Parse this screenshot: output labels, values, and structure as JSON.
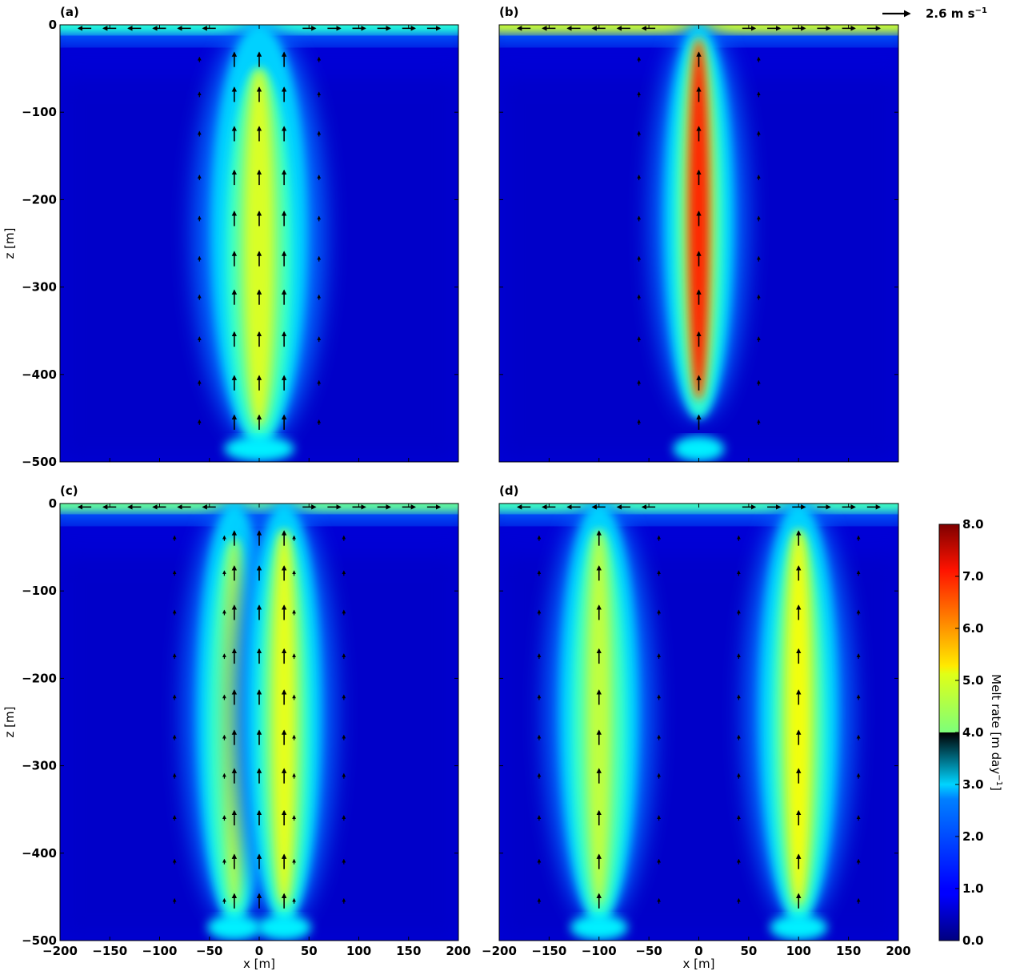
{
  "chart_data": [
    {
      "type": "heatmap",
      "panel_label": "(a)",
      "xlim": [
        -200,
        200
      ],
      "ylim": [
        -500,
        0
      ],
      "xticks": [
        -200,
        -150,
        -100,
        -50,
        0,
        50,
        100,
        150,
        200
      ],
      "yticks": [
        0,
        -100,
        -200,
        -300,
        -400,
        -500
      ],
      "xlabel": "",
      "ylabel": "z [m]",
      "plumes": [
        {
          "x": 0,
          "peak_melt": 4.7,
          "half_width": 22,
          "top": -60,
          "bottom": -470
        }
      ],
      "surface_melt": 3.3,
      "arrow_columns": [
        0,
        -25,
        25
      ],
      "arrow_levels": [
        -40,
        -80,
        -125,
        -175,
        -222,
        -268,
        -312,
        -360,
        -410,
        -455
      ]
    },
    {
      "type": "heatmap",
      "panel_label": "(b)",
      "xlim": [
        -200,
        200
      ],
      "ylim": [
        -500,
        0
      ],
      "xticks": [
        -200,
        -150,
        -100,
        -50,
        0,
        50,
        100,
        150,
        200
      ],
      "yticks": [
        0,
        -100,
        -200,
        -300,
        -400,
        -500
      ],
      "xlabel": "",
      "ylabel": "",
      "plumes": [
        {
          "x": 0,
          "peak_melt": 6.7,
          "half_width": 16,
          "top": -25,
          "bottom": -440
        }
      ],
      "surface_melt": 4.6,
      "arrow_columns": [
        0
      ],
      "arrow_levels": [
        -40,
        -80,
        -125,
        -175,
        -222,
        -268,
        -312,
        -360,
        -410,
        -455
      ],
      "reference_arrow": {
        "label": "2.6 m s",
        "exponent": "−1"
      }
    },
    {
      "type": "heatmap",
      "panel_label": "(c)",
      "xlim": [
        -200,
        200
      ],
      "ylim": [
        -500,
        0
      ],
      "xticks": [
        -200,
        -150,
        -100,
        -50,
        0,
        50,
        100,
        150,
        200
      ],
      "yticks": [
        0,
        -100,
        -200,
        -300,
        -400,
        -500
      ],
      "xlabel": "x [m]",
      "ylabel": "z [m]",
      "plumes": [
        {
          "x": -25,
          "peak_melt": 4.4,
          "half_width": 17,
          "top": -50,
          "bottom": -470
        },
        {
          "x": 25,
          "peak_melt": 4.8,
          "half_width": 17,
          "top": -40,
          "bottom": -470
        }
      ],
      "surface_melt": 3.8,
      "arrow_columns": [
        -25,
        0,
        25
      ],
      "arrow_levels": [
        -40,
        -80,
        -125,
        -175,
        -222,
        -268,
        -312,
        -360,
        -410,
        -455
      ]
    },
    {
      "type": "heatmap",
      "panel_label": "(d)",
      "xlim": [
        -200,
        200
      ],
      "ylim": [
        -500,
        0
      ],
      "xticks": [
        -200,
        -150,
        -100,
        -50,
        0,
        50,
        100,
        150,
        200
      ],
      "yticks": [
        0,
        -100,
        -200,
        -300,
        -400,
        -500
      ],
      "xlabel": "x [m]",
      "ylabel": "",
      "plumes": [
        {
          "x": -100,
          "peak_melt": 4.5,
          "half_width": 18,
          "top": -40,
          "bottom": -470
        },
        {
          "x": 100,
          "peak_melt": 4.9,
          "half_width": 18,
          "top": -40,
          "bottom": -470
        }
      ],
      "surface_melt": 3.5,
      "arrow_columns": [
        -100,
        100
      ],
      "arrow_levels": [
        -40,
        -80,
        -125,
        -175,
        -222,
        -268,
        -312,
        -360,
        -410,
        -455
      ]
    }
  ],
  "colorbar": {
    "label": "Melt rate [m day",
    "label_exponent": "−1",
    "label_close": "]",
    "min": 0.0,
    "max": 8.0,
    "ticks": [
      "0.0",
      "1.0",
      "2.0",
      "3.0",
      "4.0",
      "5.0",
      "6.0",
      "7.0",
      "8.0"
    ],
    "colormap": "jet"
  }
}
